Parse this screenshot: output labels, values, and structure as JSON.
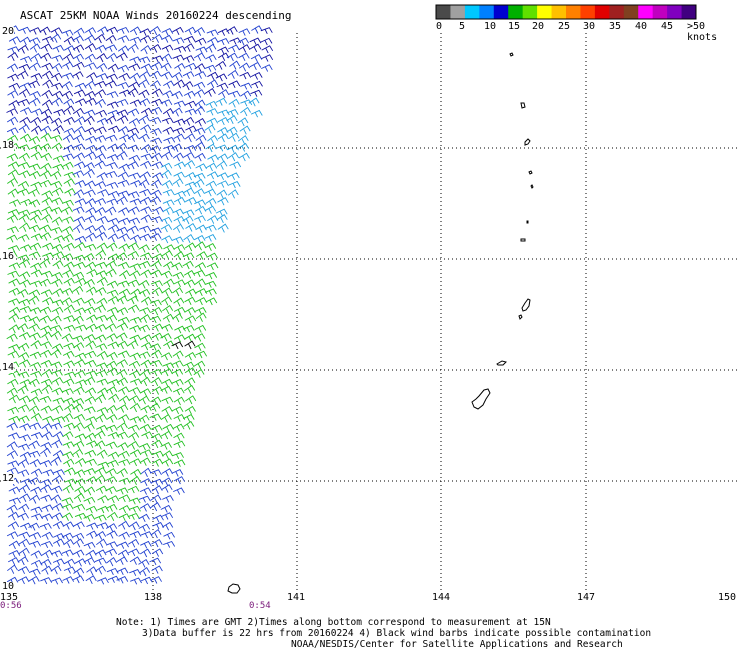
{
  "title": "ASCAT 25KM NOAA Winds 20160224 descending",
  "colorbar": {
    "labels": [
      "0",
      "5",
      "10",
      "15",
      "20",
      "25",
      "30",
      "35",
      "40",
      "45",
      ">50 knots"
    ],
    "colors": [
      "#4a4a4a",
      "#a0a0a0",
      "#00c8ff",
      "#0080ff",
      "#0000d0",
      "#00b000",
      "#60e000",
      "#ffff00",
      "#ffc000",
      "#ff8000",
      "#ff4000",
      "#e00000",
      "#a02020",
      "#804020",
      "#ff00ff",
      "#c000c0",
      "#8000c0",
      "#400080"
    ]
  },
  "axes": {
    "x_ticks": [
      "135",
      "138",
      "141",
      "144",
      "147",
      "150"
    ],
    "y_ticks": [
      "20",
      "18",
      "16",
      "14",
      "12",
      "10"
    ]
  },
  "times": {
    "left": "0:56",
    "mid": "0:54"
  },
  "notes": {
    "line1": "Note: 1) Times are GMT 2)Times along bottom correspond to measurement at 15N",
    "line2": "3)Data buffer is 22 hrs from 20160224 4) Black wind barbs indicate possible contamination",
    "line3": "NOAA/NESDIS/Center for Satellite Applications and Research"
  },
  "wind_colors": {
    "light_blue": "#20a0e0",
    "blue": "#2040d0",
    "dark_blue": "#1010a0",
    "green": "#20c020",
    "contaminated": "#000000"
  }
}
